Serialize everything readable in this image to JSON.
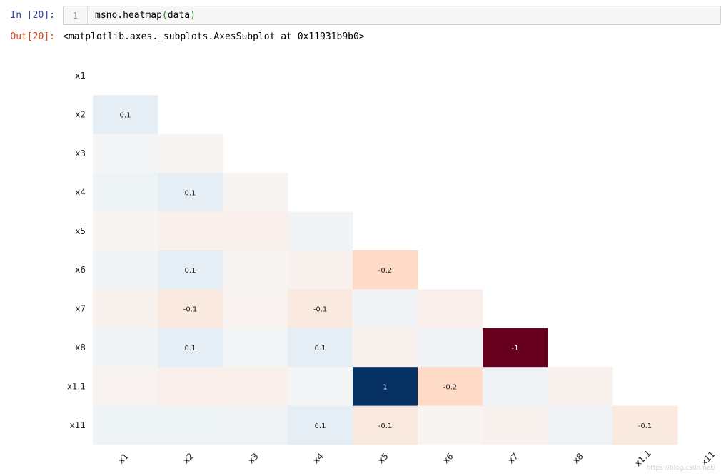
{
  "notebook": {
    "in_prompt": "In [20]:",
    "line_number": "1",
    "code_func": "msno.heatmap",
    "code_open": "(",
    "code_arg": "data",
    "code_close": ")",
    "out_prompt": "Out[20]:",
    "out_text": "<matplotlib.axes._subplots.AxesSubplot at 0x11931b9b0>"
  },
  "chart_data": {
    "type": "heatmap",
    "title": "",
    "variables": [
      "x1",
      "x2",
      "x3",
      "x4",
      "x5",
      "x6",
      "x7",
      "x8",
      "x1.1",
      "x11"
    ],
    "colormap": {
      "min": -1,
      "max": 1,
      "negative": "#67001f",
      "positive": "#053061",
      "neutral": "#f7f7f7"
    },
    "rows": [
      {
        "label": "x1",
        "values": []
      },
      {
        "label": "x2",
        "values": [
          0.1
        ]
      },
      {
        "label": "x3",
        "values": [
          0.02,
          -0.02
        ]
      },
      {
        "label": "x4",
        "values": [
          0.05,
          0.1,
          -0.02
        ]
      },
      {
        "label": "x5",
        "values": [
          -0.02,
          -0.05,
          -0.05,
          0.03
        ]
      },
      {
        "label": "x6",
        "values": [
          0.03,
          0.1,
          -0.02,
          -0.04,
          -0.2
        ]
      },
      {
        "label": "x7",
        "values": [
          -0.04,
          -0.1,
          -0.03,
          -0.1,
          0.03,
          -0.05
        ]
      },
      {
        "label": "x8",
        "values": [
          0.03,
          0.1,
          0.02,
          0.1,
          -0.04,
          0.04,
          -1
        ]
      },
      {
        "label": "x1.1",
        "values": [
          -0.03,
          -0.05,
          -0.05,
          0.02,
          1,
          -0.2,
          0.04,
          -0.04
        ]
      },
      {
        "label": "x11",
        "values": [
          0.05,
          0.05,
          0.04,
          0.1,
          -0.1,
          -0.02,
          -0.04,
          0.04,
          -0.1
        ]
      }
    ],
    "annotations": [
      {
        "row": "x2",
        "col": "x1",
        "text": "0.1"
      },
      {
        "row": "x4",
        "col": "x2",
        "text": "0.1"
      },
      {
        "row": "x6",
        "col": "x2",
        "text": "0.1"
      },
      {
        "row": "x6",
        "col": "x5",
        "text": "-0.2"
      },
      {
        "row": "x7",
        "col": "x2",
        "text": "-0.1"
      },
      {
        "row": "x7",
        "col": "x4",
        "text": "-0.1"
      },
      {
        "row": "x8",
        "col": "x2",
        "text": "0.1"
      },
      {
        "row": "x8",
        "col": "x4",
        "text": "0.1"
      },
      {
        "row": "x8",
        "col": "x7",
        "text": "-1"
      },
      {
        "row": "x1.1",
        "col": "x5",
        "text": "1"
      },
      {
        "row": "x1.1",
        "col": "x6",
        "text": "-0.2"
      },
      {
        "row": "x11",
        "col": "x4",
        "text": "0.1"
      },
      {
        "row": "x11",
        "col": "x5",
        "text": "-0.1"
      },
      {
        "row": "x11",
        "col": "x1.1",
        "text": "-0.1"
      }
    ]
  }
}
